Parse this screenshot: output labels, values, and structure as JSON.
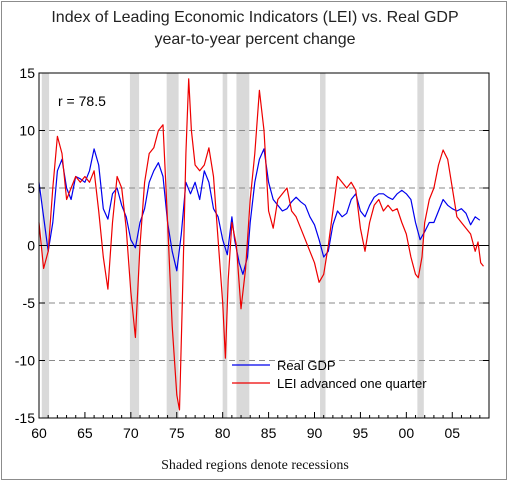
{
  "chart_data": {
    "type": "line",
    "title": "Index of Leading Economic Indicators (LEI) vs. Real GDP",
    "subtitle": "year-to-year percent change",
    "annotation": "r = 78.5",
    "footnote": "Shaded regions denote recessions",
    "xlim": [
      1960,
      2009
    ],
    "ylim": [
      -15,
      15
    ],
    "x_ticks": [
      1960,
      1965,
      1970,
      1975,
      1980,
      1985,
      1990,
      1995,
      2000,
      2005
    ],
    "x_tick_labels": [
      "60",
      "65",
      "70",
      "75",
      "80",
      "85",
      "90",
      "95",
      "00",
      "05"
    ],
    "y_ticks": [
      -15,
      -10,
      -5,
      0,
      5,
      10,
      15
    ],
    "y_tick_labels": [
      "-15",
      "-10",
      "-5",
      "0",
      "5",
      "10",
      "15"
    ],
    "grid": "horizontal dashed",
    "legend_position": "bottom-center",
    "recessions": [
      [
        1960.3,
        1961.1
      ],
      [
        1969.9,
        1970.9
      ],
      [
        1973.9,
        1975.2
      ],
      [
        1980.0,
        1980.5
      ],
      [
        1981.5,
        1982.9
      ],
      [
        1990.6,
        1991.2
      ],
      [
        2001.2,
        2001.9
      ]
    ],
    "series": [
      {
        "name": "Real GDP",
        "color": "#0000ee",
        "points": [
          [
            1960.0,
            5.5
          ],
          [
            1960.5,
            2.5
          ],
          [
            1961.0,
            -0.5
          ],
          [
            1961.5,
            2.0
          ],
          [
            1962.0,
            6.5
          ],
          [
            1962.5,
            7.5
          ],
          [
            1963.0,
            5.0
          ],
          [
            1963.5,
            4.0
          ],
          [
            1964.0,
            6.0
          ],
          [
            1964.5,
            5.8
          ],
          [
            1965.0,
            5.5
          ],
          [
            1965.5,
            6.5
          ],
          [
            1966.0,
            8.4
          ],
          [
            1966.5,
            7.0
          ],
          [
            1967.0,
            3.2
          ],
          [
            1967.5,
            2.3
          ],
          [
            1968.0,
            4.5
          ],
          [
            1968.5,
            5.0
          ],
          [
            1969.0,
            3.5
          ],
          [
            1969.5,
            2.5
          ],
          [
            1970.0,
            0.5
          ],
          [
            1970.5,
            -0.2
          ],
          [
            1971.0,
            2.0
          ],
          [
            1971.5,
            3.2
          ],
          [
            1972.0,
            5.5
          ],
          [
            1972.5,
            6.5
          ],
          [
            1973.0,
            7.2
          ],
          [
            1973.5,
            6.0
          ],
          [
            1974.0,
            2.0
          ],
          [
            1974.5,
            -0.5
          ],
          [
            1975.0,
            -2.2
          ],
          [
            1975.5,
            1.0
          ],
          [
            1976.0,
            5.5
          ],
          [
            1976.5,
            4.5
          ],
          [
            1977.0,
            5.5
          ],
          [
            1977.5,
            4.0
          ],
          [
            1978.0,
            6.5
          ],
          [
            1978.5,
            5.5
          ],
          [
            1979.0,
            3.2
          ],
          [
            1979.5,
            2.5
          ],
          [
            1980.0,
            0.5
          ],
          [
            1980.5,
            -0.8
          ],
          [
            1981.0,
            2.5
          ],
          [
            1981.3,
            0.5
          ],
          [
            1981.8,
            -1.5
          ],
          [
            1982.2,
            -2.5
          ],
          [
            1982.7,
            -1.0
          ],
          [
            1983.0,
            2.0
          ],
          [
            1983.5,
            5.5
          ],
          [
            1984.0,
            7.5
          ],
          [
            1984.5,
            8.4
          ],
          [
            1985.0,
            5.5
          ],
          [
            1985.5,
            4.0
          ],
          [
            1986.0,
            3.5
          ],
          [
            1986.5,
            3.0
          ],
          [
            1987.0,
            3.2
          ],
          [
            1987.5,
            3.8
          ],
          [
            1988.0,
            4.2
          ],
          [
            1988.5,
            3.8
          ],
          [
            1989.0,
            3.5
          ],
          [
            1989.5,
            2.5
          ],
          [
            1990.0,
            1.8
          ],
          [
            1990.5,
            0.5
          ],
          [
            1991.0,
            -1.0
          ],
          [
            1991.5,
            -0.5
          ],
          [
            1992.0,
            1.8
          ],
          [
            1992.5,
            3.0
          ],
          [
            1993.0,
            2.5
          ],
          [
            1993.5,
            2.8
          ],
          [
            1994.0,
            4.0
          ],
          [
            1994.5,
            4.5
          ],
          [
            1995.0,
            3.0
          ],
          [
            1995.5,
            2.5
          ],
          [
            1996.0,
            3.5
          ],
          [
            1996.5,
            4.2
          ],
          [
            1997.0,
            4.5
          ],
          [
            1997.5,
            4.5
          ],
          [
            1998.0,
            4.2
          ],
          [
            1998.5,
            4.0
          ],
          [
            1999.0,
            4.5
          ],
          [
            1999.5,
            4.8
          ],
          [
            2000.0,
            4.5
          ],
          [
            2000.5,
            4.0
          ],
          [
            2001.0,
            2.0
          ],
          [
            2001.5,
            0.5
          ],
          [
            2002.0,
            1.2
          ],
          [
            2002.5,
            2.0
          ],
          [
            2003.0,
            2.0
          ],
          [
            2003.5,
            3.0
          ],
          [
            2004.0,
            4.0
          ],
          [
            2004.5,
            3.5
          ],
          [
            2005.0,
            3.2
          ],
          [
            2005.5,
            3.0
          ],
          [
            2006.0,
            3.2
          ],
          [
            2006.5,
            2.8
          ],
          [
            2007.0,
            1.8
          ],
          [
            2007.5,
            2.5
          ],
          [
            2008.0,
            2.2
          ]
        ]
      },
      {
        "name": "LEI advanced one quarter",
        "color": "#ee0000",
        "points": [
          [
            1960.0,
            2.0
          ],
          [
            1960.5,
            -2.0
          ],
          [
            1961.0,
            -0.5
          ],
          [
            1961.5,
            5.0
          ],
          [
            1962.0,
            9.5
          ],
          [
            1962.5,
            8.0
          ],
          [
            1963.0,
            4.0
          ],
          [
            1963.5,
            5.0
          ],
          [
            1964.0,
            6.0
          ],
          [
            1964.5,
            5.5
          ],
          [
            1965.0,
            6.0
          ],
          [
            1965.5,
            5.5
          ],
          [
            1966.0,
            6.5
          ],
          [
            1966.5,
            3.0
          ],
          [
            1967.0,
            -1.0
          ],
          [
            1967.5,
            -3.8
          ],
          [
            1968.0,
            2.0
          ],
          [
            1968.5,
            6.0
          ],
          [
            1969.0,
            5.0
          ],
          [
            1969.5,
            1.5
          ],
          [
            1970.0,
            -4.0
          ],
          [
            1970.5,
            -8.0
          ],
          [
            1971.0,
            0.0
          ],
          [
            1971.5,
            5.5
          ],
          [
            1972.0,
            8.0
          ],
          [
            1972.5,
            8.5
          ],
          [
            1973.0,
            10.0
          ],
          [
            1973.5,
            10.5
          ],
          [
            1974.0,
            2.0
          ],
          [
            1974.5,
            -7.0
          ],
          [
            1975.0,
            -13.0
          ],
          [
            1975.3,
            -14.3
          ],
          [
            1975.6,
            -5.0
          ],
          [
            1976.0,
            8.0
          ],
          [
            1976.3,
            14.5
          ],
          [
            1976.6,
            10.0
          ],
          [
            1977.0,
            7.0
          ],
          [
            1977.5,
            6.5
          ],
          [
            1978.0,
            7.0
          ],
          [
            1978.5,
            8.5
          ],
          [
            1979.0,
            6.0
          ],
          [
            1979.5,
            0.5
          ],
          [
            1980.0,
            -5.0
          ],
          [
            1980.3,
            -9.8
          ],
          [
            1980.6,
            -3.0
          ],
          [
            1981.0,
            2.0
          ],
          [
            1981.5,
            0.0
          ],
          [
            1982.0,
            -5.5
          ],
          [
            1982.5,
            -2.0
          ],
          [
            1983.0,
            4.0
          ],
          [
            1983.5,
            8.0
          ],
          [
            1984.0,
            13.5
          ],
          [
            1984.5,
            10.0
          ],
          [
            1985.0,
            3.0
          ],
          [
            1985.5,
            1.5
          ],
          [
            1986.0,
            4.0
          ],
          [
            1986.5,
            4.5
          ],
          [
            1987.0,
            5.0
          ],
          [
            1987.5,
            3.0
          ],
          [
            1988.0,
            2.5
          ],
          [
            1988.5,
            1.5
          ],
          [
            1989.0,
            0.5
          ],
          [
            1989.5,
            -0.5
          ],
          [
            1990.0,
            -1.5
          ],
          [
            1990.5,
            -3.2
          ],
          [
            1991.0,
            -2.5
          ],
          [
            1991.5,
            0.0
          ],
          [
            1992.0,
            3.0
          ],
          [
            1992.5,
            6.0
          ],
          [
            1993.0,
            5.5
          ],
          [
            1993.5,
            5.0
          ],
          [
            1994.0,
            5.5
          ],
          [
            1994.5,
            4.8
          ],
          [
            1995.0,
            1.5
          ],
          [
            1995.5,
            -0.5
          ],
          [
            1996.0,
            2.0
          ],
          [
            1996.5,
            3.5
          ],
          [
            1997.0,
            4.0
          ],
          [
            1997.5,
            3.0
          ],
          [
            1998.0,
            3.5
          ],
          [
            1998.5,
            3.0
          ],
          [
            1999.0,
            3.2
          ],
          [
            1999.5,
            2.0
          ],
          [
            2000.0,
            1.0
          ],
          [
            2000.5,
            -1.0
          ],
          [
            2001.0,
            -2.5
          ],
          [
            2001.3,
            -2.8
          ],
          [
            2001.7,
            -1.0
          ],
          [
            2002.0,
            2.0
          ],
          [
            2002.5,
            4.0
          ],
          [
            2003.0,
            5.0
          ],
          [
            2003.5,
            7.0
          ],
          [
            2004.0,
            8.3
          ],
          [
            2004.5,
            7.5
          ],
          [
            2005.0,
            5.0
          ],
          [
            2005.5,
            2.5
          ],
          [
            2006.0,
            2.0
          ],
          [
            2006.5,
            1.5
          ],
          [
            2007.0,
            1.0
          ],
          [
            2007.5,
            -0.5
          ],
          [
            2007.8,
            0.3
          ],
          [
            2008.1,
            -1.5
          ],
          [
            2008.4,
            -1.8
          ]
        ]
      }
    ]
  }
}
